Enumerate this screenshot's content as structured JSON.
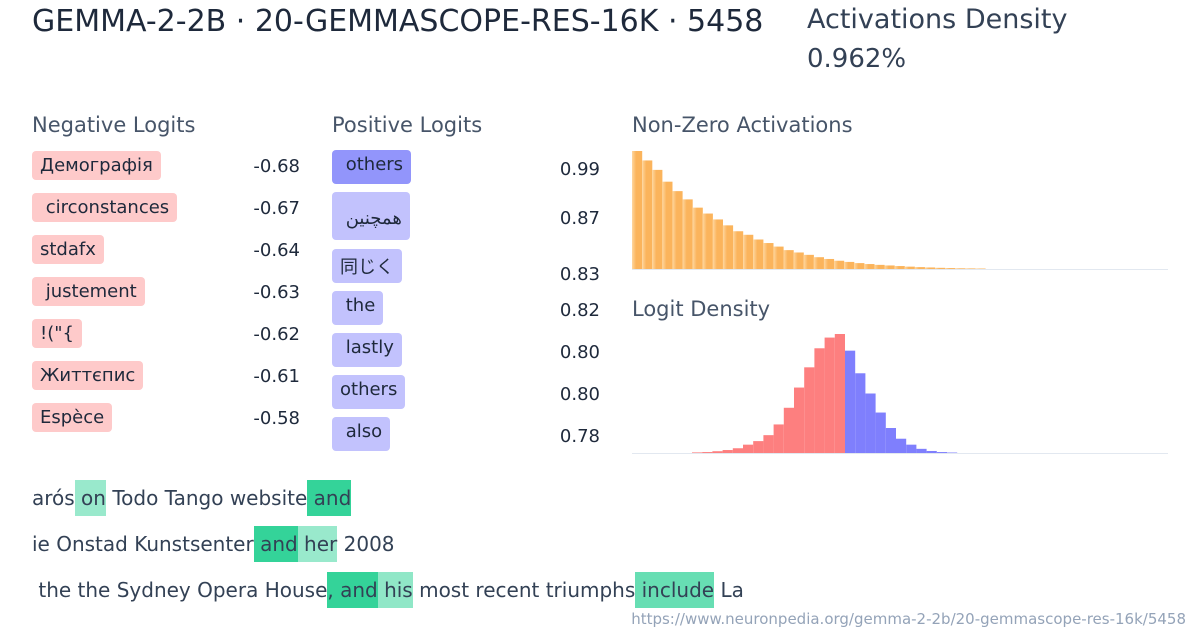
{
  "header": {
    "title": "GEMMA-2-2B · 20-GEMMASCOPE-RES-16K · 5458",
    "density_label": "Activations Density",
    "density_value": "0.962%"
  },
  "negative_logits": {
    "label": "Negative Logits",
    "items": [
      {
        "token": "Демографія",
        "value": "-0.68"
      },
      {
        "token": " circonstances",
        "value": "-0.67"
      },
      {
        "token": "stdafx",
        "value": "-0.64"
      },
      {
        "token": " justement",
        "value": "-0.63"
      },
      {
        "token": "!(\"{",
        "value": "-0.62"
      },
      {
        "token": "Життєпис",
        "value": "-0.61"
      },
      {
        "token": "Espèce",
        "value": "-0.58"
      }
    ]
  },
  "positive_logits": {
    "label": "Positive Logits",
    "items": [
      {
        "token": " others",
        "value": "0.99",
        "color": "#9295fb"
      },
      {
        "token": " همچنین",
        "value": "0.87",
        "color": "#c2c2fd"
      },
      {
        "token": "同じく",
        "value": "0.83",
        "color": "#c2c2fd"
      },
      {
        "token": " the",
        "value": "0.82",
        "color": "#c2c2fd"
      },
      {
        "token": " lastly",
        "value": "0.80",
        "color": "#c2c2fd"
      },
      {
        "token": "others",
        "value": "0.80",
        "color": "#c2c2fd"
      },
      {
        "token": " also",
        "value": "0.78",
        "color": "#c2c2fd"
      }
    ]
  },
  "chart_data": [
    {
      "type": "bar",
      "title": "Non-Zero Activations",
      "colors": [
        "#fed7a0",
        "#fbb45c"
      ],
      "values": [
        1.0,
        0.92,
        0.84,
        0.74,
        0.66,
        0.59,
        0.52,
        0.47,
        0.42,
        0.37,
        0.32,
        0.29,
        0.25,
        0.22,
        0.19,
        0.16,
        0.14,
        0.12,
        0.1,
        0.085,
        0.07,
        0.06,
        0.05,
        0.042,
        0.035,
        0.03,
        0.025,
        0.02,
        0.016,
        0.013,
        0.01,
        0.008,
        0.006,
        0.005,
        0.004
      ]
    },
    {
      "type": "bar",
      "title": "Logit Density",
      "negative_color": "#fd7f7f",
      "positive_color": "#7f7ffd",
      "negative_values": [
        0.005,
        0.008,
        0.015,
        0.025,
        0.04,
        0.07,
        0.1,
        0.15,
        0.24,
        0.38,
        0.55,
        0.72,
        0.88,
        0.97,
        1.0
      ],
      "positive_values": [
        0.86,
        0.67,
        0.5,
        0.34,
        0.21,
        0.12,
        0.07,
        0.035,
        0.017,
        0.008,
        0.004
      ]
    }
  ],
  "examples": [
    [
      {
        "t": "arós",
        "a": 0
      },
      {
        "t": " on",
        "a": 0.5
      },
      {
        "t": " Todo Tango website",
        "a": 0
      },
      {
        "t": " and",
        "a": 1
      }
    ],
    [
      {
        "t": "ie Onstad Kunstsenter",
        "a": 0
      },
      {
        "t": " and",
        "a": 1
      },
      {
        "t": " her",
        "a": 0.5
      },
      {
        "t": " 2008",
        "a": 0
      }
    ],
    [
      {
        "t": " the the Sydney Opera House",
        "a": 0
      },
      {
        "t": ",",
        "a": 1
      },
      {
        "t": " and",
        "a": 1
      },
      {
        "t": " his",
        "a": 0.55
      },
      {
        "t": " most recent triumphs",
        "a": 0
      },
      {
        "t": " include",
        "a": 0.75
      },
      {
        "t": " La",
        "a": 0
      }
    ]
  ],
  "url": "https://www.neuronpedia.org/gemma-2-2b/20-gemmascope-res-16k/5458"
}
